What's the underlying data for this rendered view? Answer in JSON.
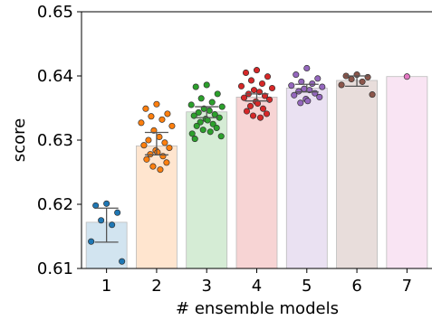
{
  "chart_data": {
    "type": "bar",
    "xlabel": "# ensemble models",
    "ylabel": "score",
    "ylim": [
      0.61,
      0.65
    ],
    "grid": false,
    "categories": [
      "1",
      "2",
      "3",
      "4",
      "5",
      "6",
      "7"
    ],
    "yticks": [
      "0.61",
      "0.62",
      "0.63",
      "0.64",
      "0.65"
    ],
    "ytick_values": [
      0.61,
      0.62,
      0.63,
      0.64,
      0.65
    ],
    "values": [
      0.6172,
      0.6291,
      0.6344,
      0.6367,
      0.6381,
      0.6393,
      0.6399
    ],
    "error_low": [
      0.6141,
      0.6277,
      0.6335,
      0.6361,
      0.6375,
      0.6384,
      null
    ],
    "error_high": [
      0.6194,
      0.6312,
      0.6352,
      0.6372,
      0.6387,
      0.64,
      null
    ],
    "colors": [
      "#1f77b4",
      "#ff7f0e",
      "#2ca02c",
      "#d62728",
      "#9467bd",
      "#8c564b",
      "#e377c2"
    ],
    "points": [
      [
        0.6201,
        0.6198,
        0.6187,
        0.6175,
        0.6168,
        0.6142,
        0.6111
      ],
      [
        0.6356,
        0.6349,
        0.6341,
        0.6337,
        0.6332,
        0.6327,
        0.6322,
        0.6315,
        0.6305,
        0.63,
        0.6296,
        0.6292,
        0.6288,
        0.6284,
        0.6281,
        0.6278,
        0.6275,
        0.627,
        0.6265,
        0.6259,
        0.6254
      ],
      [
        0.6386,
        0.6383,
        0.6372,
        0.6365,
        0.6359,
        0.6355,
        0.6352,
        0.6349,
        0.6346,
        0.6343,
        0.634,
        0.6338,
        0.6335,
        0.6333,
        0.6331,
        0.6328,
        0.6325,
        0.6322,
        0.6319,
        0.6316,
        0.6313,
        0.631,
        0.6306,
        0.6302
      ],
      [
        0.6409,
        0.6405,
        0.6399,
        0.6393,
        0.6388,
        0.6384,
        0.6381,
        0.6378,
        0.6375,
        0.6372,
        0.6369,
        0.6366,
        0.6363,
        0.636,
        0.6357,
        0.6353,
        0.6349,
        0.6345,
        0.6341,
        0.6338,
        0.6335
      ],
      [
        0.6412,
        0.6402,
        0.6396,
        0.6391,
        0.6388,
        0.6385,
        0.6383,
        0.638,
        0.6378,
        0.6376,
        0.6373,
        0.637,
        0.6367,
        0.6364,
        0.6361,
        0.6358
      ],
      [
        0.6402,
        0.64,
        0.6398,
        0.6395,
        0.6391,
        0.6386,
        0.6371
      ],
      [
        0.6399
      ]
    ]
  }
}
